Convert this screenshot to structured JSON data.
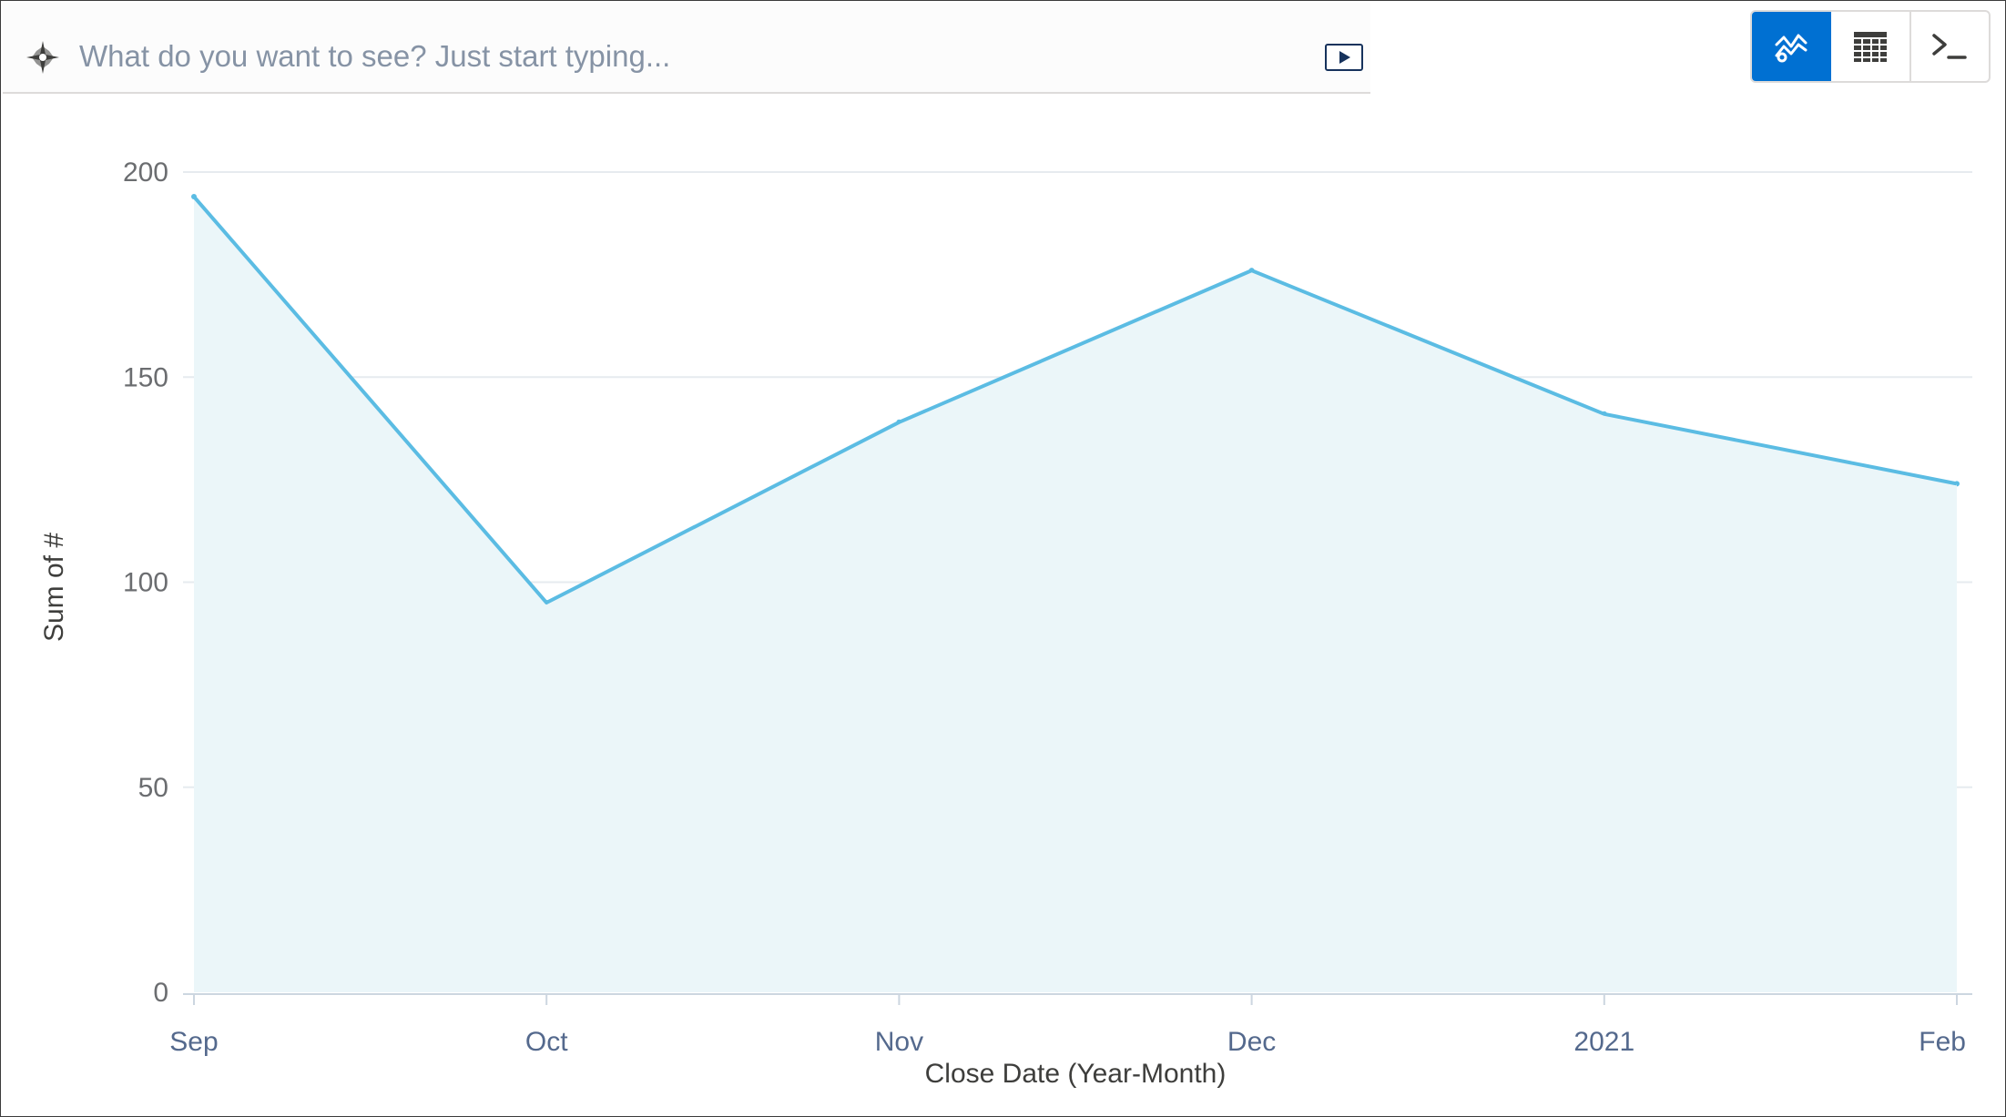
{
  "search": {
    "placeholder": "What do you want to see? Just start typing...",
    "value": ""
  },
  "toolbar": {
    "views": [
      {
        "icon": "chart-icon",
        "active": true
      },
      {
        "icon": "table-icon",
        "active": false
      },
      {
        "icon": "console-icon",
        "active": false
      }
    ]
  },
  "colors": {
    "accent": "#0070d2",
    "line": "#5bbce3",
    "area_fill": "#ebf6f9",
    "gridline": "#e6ebef"
  },
  "chart_data": {
    "type": "area",
    "categories": [
      "Sep",
      "Oct",
      "Nov",
      "Dec",
      "2021",
      "Feb"
    ],
    "series": [
      {
        "values": [
          194,
          95,
          139,
          176,
          141,
          124
        ]
      }
    ],
    "xlabel": "Close Date (Year-Month)",
    "ylabel": "Sum of #",
    "ylim": [
      0,
      200
    ],
    "yticks": [
      0,
      50,
      100,
      150,
      200
    ],
    "grid": true,
    "legend": "none"
  }
}
